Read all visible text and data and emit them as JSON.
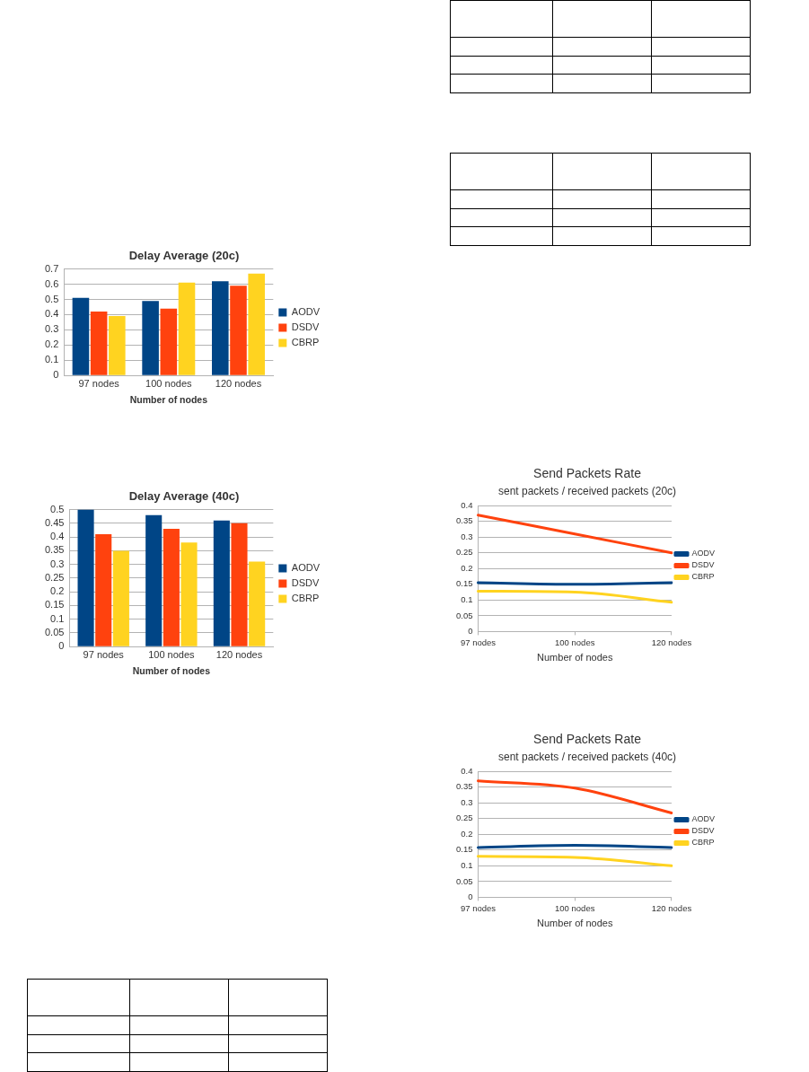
{
  "chart_data": [
    {
      "type": "bar",
      "title": "Delay Average (20c)",
      "xlabel": "Number of nodes",
      "categories": [
        "97 nodes",
        "100 nodes",
        "120 nodes"
      ],
      "series": [
        {
          "name": "AODV",
          "color": "#004586",
          "values": [
            0.51,
            0.49,
            0.62
          ]
        },
        {
          "name": "DSDV",
          "color": "#ff420e",
          "values": [
            0.42,
            0.44,
            0.59
          ]
        },
        {
          "name": "CBRP",
          "color": "#ffd320",
          "values": [
            0.39,
            0.61,
            0.67
          ]
        }
      ],
      "ylim": [
        0,
        0.7
      ],
      "yticks": [
        0,
        0.1,
        0.2,
        0.3,
        0.4,
        0.5,
        0.6,
        0.7
      ],
      "grid": "y",
      "legend": "right"
    },
    {
      "type": "bar",
      "title": "Delay Average (40c)",
      "xlabel": "Number of nodes",
      "categories": [
        "97 nodes",
        "100 nodes",
        "120 nodes"
      ],
      "series": [
        {
          "name": "AODV",
          "color": "#004586",
          "values": [
            0.5,
            0.48,
            0.46
          ]
        },
        {
          "name": "DSDV",
          "color": "#ff420e",
          "values": [
            0.41,
            0.43,
            0.45
          ]
        },
        {
          "name": "CBRP",
          "color": "#ffd320",
          "values": [
            0.35,
            0.38,
            0.31
          ]
        }
      ],
      "ylim": [
        0,
        0.5
      ],
      "yticks": [
        0,
        0.05,
        0.1,
        0.15,
        0.2,
        0.25,
        0.3,
        0.35,
        0.4,
        0.45,
        0.5
      ],
      "grid": "y",
      "legend": "right"
    },
    {
      "type": "line",
      "title": "Send Packets Rate",
      "subtitle": "sent packets / received packets (20c)",
      "xlabel": "Number of nodes",
      "categories": [
        "97 nodes",
        "100 nodes",
        "120 nodes"
      ],
      "series": [
        {
          "name": "AODV",
          "color": "#004586",
          "values": [
            0.155,
            0.15,
            0.155
          ]
        },
        {
          "name": "DSDV",
          "color": "#ff420e",
          "values": [
            0.37,
            0.31,
            0.25
          ]
        },
        {
          "name": "CBRP",
          "color": "#ffd320",
          "values": [
            0.128,
            0.125,
            0.093
          ]
        }
      ],
      "ylim": [
        0,
        0.4
      ],
      "yticks": [
        0,
        0.05,
        0.1,
        0.15,
        0.2,
        0.25,
        0.3,
        0.35,
        0.4
      ],
      "grid": "y",
      "legend": "right",
      "marker": "none",
      "line_style": "solid"
    },
    {
      "type": "line",
      "title": "Send Packets Rate",
      "subtitle": "sent packets / received packets (40c)",
      "xlabel": "Number of nodes",
      "categories": [
        "97 nodes",
        "100 nodes",
        "120 nodes"
      ],
      "series": [
        {
          "name": "AODV",
          "color": "#004586",
          "values": [
            0.158,
            0.165,
            0.158
          ]
        },
        {
          "name": "DSDV",
          "color": "#ff420e",
          "values": [
            0.37,
            0.347,
            0.268
          ]
        },
        {
          "name": "CBRP",
          "color": "#ffd320",
          "values": [
            0.13,
            0.127,
            0.1
          ]
        }
      ],
      "ylim": [
        0,
        0.4
      ],
      "yticks": [
        0,
        0.05,
        0.1,
        0.15,
        0.2,
        0.25,
        0.3,
        0.35,
        0.4
      ],
      "grid": "y",
      "legend": "right",
      "marker": "none",
      "line_style": "solid"
    }
  ]
}
